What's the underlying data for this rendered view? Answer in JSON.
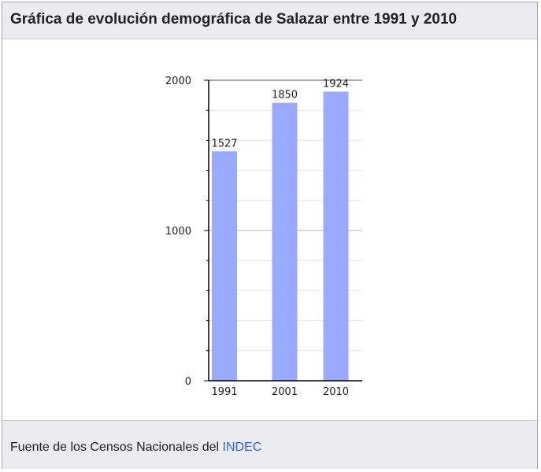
{
  "header": {
    "title": "Gráfica de evolución demográfica de Salazar entre 1991 y 2010"
  },
  "footer": {
    "source_text": "Fuente de los Censos Nacionales del",
    "source_link": "INDEC"
  },
  "chart_data": {
    "type": "bar",
    "title": "Gráfica de evolución demográfica de Salazar entre 1991 y 2010",
    "categories": [
      "1991",
      "2001",
      "2010"
    ],
    "values": [
      1527,
      1850,
      1924
    ],
    "data_labels": [
      "1527",
      "1850",
      "1924"
    ],
    "ylim": [
      0,
      2000
    ],
    "yticks": [
      "0",
      "1000",
      "2000"
    ],
    "grid": true,
    "bar_color": "#99aaff"
  }
}
